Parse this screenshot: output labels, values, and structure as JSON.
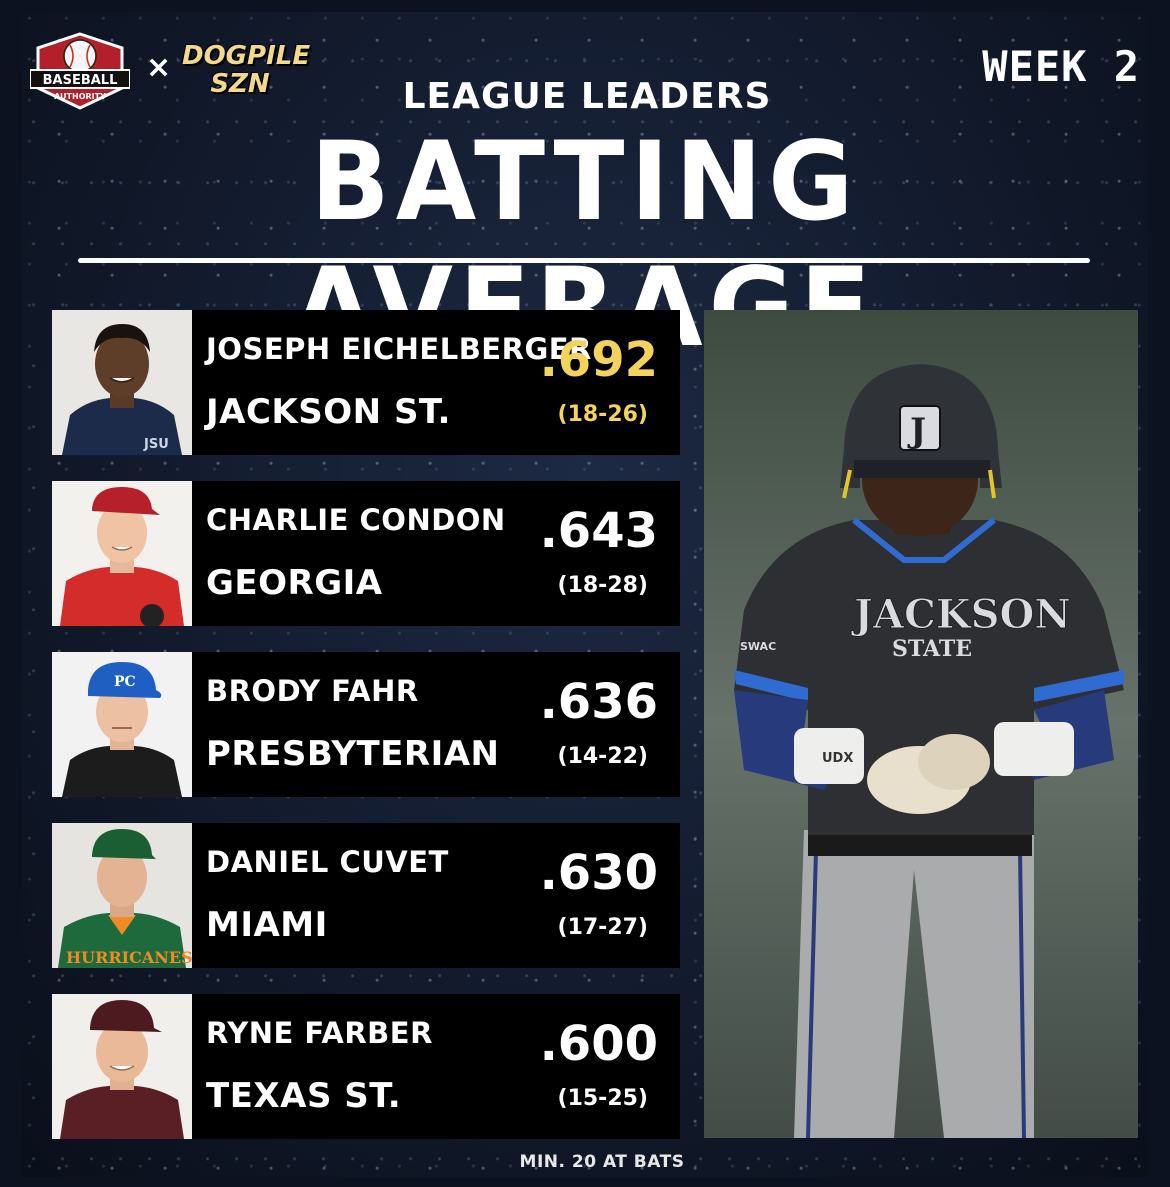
{
  "logos": {
    "baseball_authority": {
      "line1": "BASEBALL",
      "line2": "AUTHORITY"
    },
    "separator": "×",
    "dogpile": {
      "line1": "DOGPILE",
      "line2": "SZN"
    }
  },
  "week": "WEEK 2",
  "subtitle": "LEAGUE LEADERS",
  "title": "BATTING AVERAGE",
  "leaders": [
    {
      "name": "JOSEPH EICHELBERGER",
      "school": "JACKSON ST.",
      "avg": ".692",
      "hits_ab": "(18-26)",
      "highlight_color": "#f3d35a"
    },
    {
      "name": "CHARLIE CONDON",
      "school": "GEORGIA",
      "avg": ".643",
      "hits_ab": "(18-28)"
    },
    {
      "name": "BRODY FAHR",
      "school": "PRESBYTERIAN",
      "avg": ".636",
      "hits_ab": "(14-22)"
    },
    {
      "name": "DANIEL CUVET",
      "school": "MIAMI",
      "avg": ".630",
      "hits_ab": "(17-27)"
    },
    {
      "name": "RYNE FARBER",
      "school": "TEXAS ST.",
      "avg": ".600",
      "hits_ab": "(15-25)"
    }
  ],
  "photo_text": {
    "jackson_state_jersey": {
      "line1": "JACKSON",
      "line2": "STATE"
    },
    "helmet_letter": "J",
    "swac_patch": "SWAC",
    "wristband": "UDX",
    "p1_shirt": "JSU",
    "p3_cap": "PC",
    "p4_jersey": "HURRICANES"
  },
  "footer": "MIN. 20 AT BATS",
  "colors": {
    "background": "#121a2c",
    "card": "#000000",
    "accent_gold": "#f3d35a"
  }
}
